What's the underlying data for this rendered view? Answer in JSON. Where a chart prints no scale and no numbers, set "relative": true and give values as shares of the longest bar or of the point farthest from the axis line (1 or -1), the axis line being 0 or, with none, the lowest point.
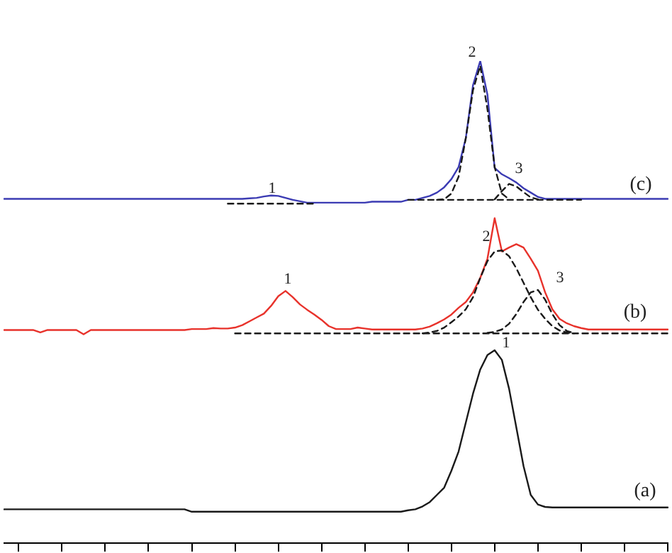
{
  "chart_data": {
    "type": "line",
    "relative": true,
    "marker": "none",
    "legend": false,
    "grid": false,
    "categories": [
      null,
      null,
      null,
      null,
      null,
      null,
      null,
      null,
      null,
      null,
      null,
      null,
      null,
      null,
      null,
      null,
      null,
      null,
      null,
      null,
      null,
      null,
      null,
      null,
      null,
      null,
      null,
      null,
      null,
      null,
      null,
      null,
      null,
      null,
      null,
      null,
      null,
      null,
      null,
      null,
      null,
      null,
      null,
      null,
      null,
      null,
      null,
      null,
      null,
      null,
      null,
      null,
      null,
      null,
      null,
      null,
      null,
      null,
      null,
      null,
      null,
      null,
      null,
      null,
      null,
      null,
      null,
      null,
      null,
      null,
      null,
      null,
      null,
      null,
      null,
      null,
      null,
      null,
      null,
      null,
      null,
      null,
      null,
      null,
      null,
      null,
      null,
      null,
      null,
      null,
      null,
      null,
      null
    ],
    "series": [
      {
        "color": "#1a1a1a",
        "line_style": "solid",
        "values": [
          0.07,
          0.07,
          0.07,
          0.07,
          0.07,
          0.07,
          0.07,
          0.07,
          0.07,
          0.07,
          0.07,
          0.07,
          0.07,
          0.07,
          0.07,
          0.07,
          0.07,
          0.07,
          0.07,
          0.07,
          0.07,
          0.07,
          0.07,
          0.07,
          0.07,
          0.07,
          0.065,
          0.065,
          0.065,
          0.065,
          0.065,
          0.065,
          0.065,
          0.065,
          0.065,
          0.065,
          0.065,
          0.065,
          0.065,
          0.065,
          0.065,
          0.065,
          0.065,
          0.065,
          0.065,
          0.065,
          0.065,
          0.065,
          0.065,
          0.065,
          0.065,
          0.065,
          0.065,
          0.065,
          0.065,
          0.065,
          0.068,
          0.07,
          0.076,
          0.085,
          0.1,
          0.115,
          0.15,
          0.19,
          0.25,
          0.31,
          0.36,
          0.39,
          0.4,
          0.38,
          0.32,
          0.24,
          0.16,
          0.1,
          0.08,
          0.075,
          0.074,
          0.074,
          0.074,
          0.074,
          0.074,
          0.074,
          0.074,
          0.074,
          0.074,
          0.074,
          0.074,
          0.074,
          0.074,
          0.074,
          0.074,
          0.074,
          0.074
        ]
      },
      {
        "color": "#1a1a1a",
        "line_style": "dashed",
        "values": [
          null,
          null,
          null,
          null,
          null,
          null,
          null,
          null,
          null,
          null,
          null,
          null,
          null,
          null,
          null,
          null,
          null,
          null,
          null,
          null,
          null,
          null,
          null,
          null,
          null,
          null,
          null,
          null,
          null,
          null,
          null,
          null,
          0.435,
          0.435,
          0.435,
          0.435,
          0.435,
          0.435,
          0.435,
          0.435,
          0.435,
          0.435,
          0.435,
          0.435,
          0.435,
          0.435,
          0.435,
          0.435,
          0.435,
          0.435,
          0.435,
          0.435,
          0.435,
          0.435,
          0.435,
          0.435,
          0.435,
          0.435,
          0.435,
          0.435,
          0.435,
          0.435,
          0.435,
          0.435,
          0.435,
          0.435,
          0.435,
          0.435,
          0.435,
          0.435,
          0.435,
          0.435,
          0.435,
          0.435,
          0.435,
          0.435,
          0.435,
          0.435,
          0.435,
          0.435,
          0.435,
          0.435,
          0.435,
          0.435,
          0.435,
          0.435,
          0.435,
          0.435,
          0.435,
          0.435,
          0.435,
          0.435,
          0.435
        ]
      },
      {
        "color": "#1a1a1a",
        "line_style": "dashed",
        "values": [
          null,
          null,
          null,
          null,
          null,
          null,
          null,
          null,
          null,
          null,
          null,
          null,
          null,
          null,
          null,
          null,
          null,
          null,
          null,
          null,
          null,
          null,
          null,
          null,
          null,
          null,
          null,
          null,
          null,
          null,
          null,
          null,
          null,
          null,
          null,
          null,
          null,
          null,
          null,
          null,
          null,
          null,
          null,
          null,
          null,
          null,
          null,
          null,
          null,
          null,
          null,
          null,
          null,
          null,
          null,
          null,
          null,
          null,
          0.435,
          0.437,
          0.44,
          0.447,
          0.458,
          0.47,
          0.485,
          0.51,
          0.55,
          0.585,
          0.605,
          0.607,
          0.595,
          0.57,
          0.54,
          0.51,
          0.484,
          0.465,
          0.45,
          0.441,
          0.437,
          0.435,
          null,
          null,
          null,
          null,
          null,
          null,
          null,
          null,
          null,
          null,
          null,
          null,
          null
        ]
      },
      {
        "color": "#1a1a1a",
        "line_style": "dashed",
        "values": [
          null,
          null,
          null,
          null,
          null,
          null,
          null,
          null,
          null,
          null,
          null,
          null,
          null,
          null,
          null,
          null,
          null,
          null,
          null,
          null,
          null,
          null,
          null,
          null,
          null,
          null,
          null,
          null,
          null,
          null,
          null,
          null,
          null,
          null,
          null,
          null,
          null,
          null,
          null,
          null,
          null,
          null,
          null,
          null,
          null,
          null,
          null,
          null,
          null,
          null,
          null,
          null,
          null,
          null,
          null,
          null,
          null,
          null,
          null,
          null,
          null,
          null,
          null,
          null,
          null,
          null,
          null,
          0.436,
          0.438,
          0.443,
          0.455,
          0.475,
          0.5,
          0.52,
          0.525,
          0.505,
          0.475,
          0.452,
          0.44,
          0.436,
          null,
          null,
          null,
          null,
          null,
          null,
          null,
          null,
          null,
          null,
          null,
          null,
          null
        ]
      },
      {
        "color": "#e8322b",
        "line_style": "solid",
        "values": [
          0.442,
          0.442,
          0.442,
          0.442,
          0.442,
          0.437,
          0.442,
          0.442,
          0.442,
          0.442,
          0.442,
          0.433,
          0.442,
          0.442,
          0.442,
          0.442,
          0.442,
          0.442,
          0.442,
          0.442,
          0.442,
          0.442,
          0.442,
          0.442,
          0.442,
          0.442,
          0.444,
          0.444,
          0.444,
          0.446,
          0.445,
          0.445,
          0.447,
          0.452,
          0.46,
          0.468,
          0.476,
          0.492,
          0.512,
          0.523,
          0.51,
          0.495,
          0.484,
          0.474,
          0.463,
          0.45,
          0.444,
          0.444,
          0.444,
          0.447,
          0.445,
          0.443,
          0.443,
          0.443,
          0.443,
          0.443,
          0.443,
          0.443,
          0.445,
          0.449,
          0.456,
          0.464,
          0.474,
          0.488,
          0.5,
          0.52,
          0.55,
          0.59,
          0.674,
          0.605,
          0.613,
          0.62,
          0.613,
          0.59,
          0.565,
          0.52,
          0.485,
          0.465,
          0.456,
          0.45,
          0.446,
          0.443,
          0.443,
          0.443,
          0.443,
          0.443,
          0.443,
          0.443,
          0.443,
          0.443,
          0.443,
          0.443,
          0.443
        ]
      },
      {
        "color": "#1a1a1a",
        "line_style": "dashed",
        "values": [
          null,
          null,
          null,
          null,
          null,
          null,
          null,
          null,
          null,
          null,
          null,
          null,
          null,
          null,
          null,
          null,
          null,
          null,
          null,
          null,
          null,
          null,
          null,
          null,
          null,
          null,
          null,
          null,
          null,
          null,
          null,
          0.704,
          0.704,
          0.704,
          0.704,
          0.704,
          0.704,
          0.704,
          0.704,
          0.704,
          0.704,
          0.704,
          0.704,
          0.704,
          null,
          null,
          null,
          null,
          null,
          null,
          null,
          null,
          null,
          null,
          null,
          null,
          null,
          null,
          null,
          null,
          null,
          null,
          null,
          null,
          null,
          null,
          null,
          null,
          null,
          null,
          null,
          null,
          null,
          null,
          null,
          null,
          null,
          null,
          null,
          null,
          null,
          null,
          null,
          null,
          null,
          null,
          null,
          null,
          null,
          null,
          null,
          null,
          null
        ]
      },
      {
        "color": "#1a1a1a",
        "line_style": "dashed",
        "values": [
          null,
          null,
          null,
          null,
          null,
          null,
          null,
          null,
          null,
          null,
          null,
          null,
          null,
          null,
          null,
          null,
          null,
          null,
          null,
          null,
          null,
          null,
          null,
          null,
          null,
          null,
          null,
          null,
          null,
          null,
          null,
          null,
          null,
          null,
          null,
          null,
          null,
          null,
          null,
          null,
          null,
          null,
          null,
          null,
          null,
          null,
          null,
          null,
          null,
          null,
          null,
          null,
          null,
          null,
          null,
          null,
          0.712,
          0.712,
          0.712,
          0.712,
          0.712,
          0.712,
          0.712,
          0.712,
          0.712,
          0.712,
          0.712,
          0.712,
          0.712,
          0.712,
          0.712,
          0.712,
          0.712,
          0.712,
          0.712,
          0.712,
          0.712,
          0.712,
          0.712,
          0.712,
          0.712,
          null,
          null,
          null,
          null,
          null,
          null,
          null,
          null,
          null,
          null,
          null,
          null
        ]
      },
      {
        "color": "#1a1a1a",
        "line_style": "dashed",
        "values": [
          null,
          null,
          null,
          null,
          null,
          null,
          null,
          null,
          null,
          null,
          null,
          null,
          null,
          null,
          null,
          null,
          null,
          null,
          null,
          null,
          null,
          null,
          null,
          null,
          null,
          null,
          null,
          null,
          null,
          null,
          null,
          null,
          null,
          null,
          null,
          null,
          null,
          null,
          null,
          null,
          null,
          null,
          null,
          null,
          null,
          null,
          null,
          null,
          null,
          null,
          null,
          null,
          null,
          null,
          null,
          null,
          null,
          null,
          null,
          null,
          0.712,
          0.713,
          0.725,
          0.76,
          0.84,
          0.94,
          0.99,
          0.9,
          0.78,
          0.725,
          0.713,
          null,
          null,
          null,
          null,
          null,
          null,
          null,
          null,
          null,
          null,
          null,
          null,
          null,
          null,
          null,
          null,
          null,
          null,
          null,
          null,
          null,
          null
        ]
      },
      {
        "color": "#1a1a1a",
        "line_style": "dashed",
        "values": [
          null,
          null,
          null,
          null,
          null,
          null,
          null,
          null,
          null,
          null,
          null,
          null,
          null,
          null,
          null,
          null,
          null,
          null,
          null,
          null,
          null,
          null,
          null,
          null,
          null,
          null,
          null,
          null,
          null,
          null,
          null,
          null,
          null,
          null,
          null,
          null,
          null,
          null,
          null,
          null,
          null,
          null,
          null,
          null,
          null,
          null,
          null,
          null,
          null,
          null,
          null,
          null,
          null,
          null,
          null,
          null,
          null,
          null,
          null,
          null,
          null,
          null,
          null,
          null,
          null,
          null,
          null,
          null,
          0.713,
          0.73,
          0.745,
          0.74,
          0.728,
          0.717,
          0.713,
          null,
          null,
          null,
          null,
          null,
          null,
          null,
          null,
          null,
          null,
          null,
          null,
          null,
          null,
          null,
          null,
          null,
          null
        ]
      },
      {
        "color": "#3b3bb3",
        "line_style": "solid",
        "values": [
          0.714,
          0.714,
          0.714,
          0.714,
          0.714,
          0.714,
          0.714,
          0.714,
          0.714,
          0.714,
          0.714,
          0.714,
          0.714,
          0.714,
          0.714,
          0.714,
          0.714,
          0.714,
          0.714,
          0.714,
          0.714,
          0.714,
          0.714,
          0.714,
          0.714,
          0.714,
          0.714,
          0.714,
          0.714,
          0.714,
          0.714,
          0.714,
          0.714,
          0.714,
          0.715,
          0.716,
          0.719,
          0.721,
          0.72,
          0.716,
          0.712,
          0.709,
          0.706,
          0.706,
          0.706,
          0.706,
          0.706,
          0.706,
          0.706,
          0.706,
          0.706,
          0.708,
          0.708,
          0.708,
          0.708,
          0.708,
          0.712,
          0.712,
          0.716,
          0.72,
          0.727,
          0.738,
          0.755,
          0.78,
          0.84,
          0.95,
          1,
          0.93,
          0.778,
          0.765,
          0.757,
          0.748,
          0.736,
          0.727,
          0.718,
          0.714,
          0.714,
          0.714,
          0.714,
          0.714,
          0.714,
          0.714,
          0.714,
          0.714,
          0.714,
          0.714,
          0.714,
          0.714,
          0.714,
          0.714,
          0.714,
          0.714,
          0.714
        ]
      }
    ],
    "annotations": [
      "1",
      "2",
      "3",
      "(c)",
      "1",
      "2",
      "3",
      "(b)",
      "1",
      "(a)"
    ]
  }
}
